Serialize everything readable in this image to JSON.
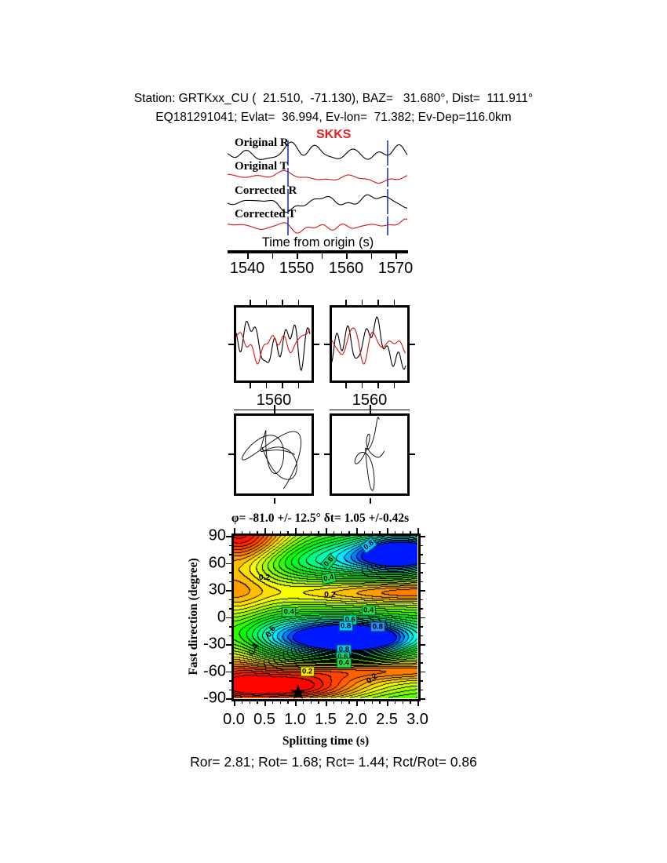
{
  "colors": {
    "trace_black": "#000000",
    "trace_red": "#d71414",
    "phase_red": "#e82020",
    "pick_blue": "#2233bb",
    "star_black": "#000000",
    "chip_green": "#22dd44",
    "chip_cyan": "#00c8ff",
    "chip_yellow": "#ffee00",
    "chip_blue": "#3388ff"
  },
  "header": {
    "line1": "Station: GRTKxx_CU (  21.510,  -71.130), BAZ=   31.680°, Dist=  111.911°",
    "line2": "EQ181291041; Evlat=  36.994, Ev-lon=  71.382; Ev-Dep=116.0km"
  },
  "seismogram": {
    "phase_label": "SKKS",
    "trace_labels": [
      "Original R",
      "Original T",
      "Corrected R",
      "Corrected T"
    ],
    "axis_label": "Time from origin (s)",
    "tick_labels": [
      "1540",
      "1550",
      "1560",
      "1570"
    ]
  },
  "window_panels": {
    "left_tick_label": "1560",
    "right_tick_label": "1560"
  },
  "contour": {
    "title": "φ= -81.0 +/- 12.5° δt= 1.05 +/-0.42s",
    "ylabel": "Fast direction (degree)",
    "xlabel": "Splitting time (s)",
    "ytick_labels": [
      "90",
      "60",
      "30",
      "0",
      "-30",
      "-60",
      "-90"
    ],
    "xtick_labels": [
      "0.0",
      "0.5",
      "1.0",
      "1.5",
      "2.0",
      "2.5",
      "3.0"
    ],
    "star": {
      "dt": 1.05,
      "phi": -81
    },
    "labels": [
      {
        "text": "0.2",
        "dt": 0.5,
        "phi": 44,
        "bg": null,
        "rot": 0
      },
      {
        "text": "0.6",
        "dt": 1.55,
        "phi": 61,
        "bg": "#00e06a",
        "rot": -48
      },
      {
        "text": "0.8",
        "dt": 2.2,
        "phi": 80,
        "bg": "#00c8ff",
        "rot": -38
      },
      {
        "text": "0.4",
        "dt": 1.55,
        "phi": 43,
        "bg": "#22dd44",
        "rot": -12
      },
      {
        "text": "0.2",
        "dt": 1.57,
        "phi": 25,
        "bg": null,
        "rot": 0
      },
      {
        "text": "0.4",
        "dt": 0.9,
        "phi": 6,
        "bg": "#22dd44",
        "rot": 0
      },
      {
        "text": "0.4",
        "dt": 2.2,
        "phi": 7,
        "bg": "#22dd44",
        "rot": 0
      },
      {
        "text": "0.6",
        "dt": 1.9,
        "phi": -3,
        "bg": "#00e0a0",
        "rot": 0
      },
      {
        "text": "0.8",
        "dt": 1.83,
        "phi": -10,
        "bg": "#00c8ff",
        "rot": 0
      },
      {
        "text": "0.8",
        "dt": 2.35,
        "phi": -11,
        "bg": "#3388ff",
        "rot": 0
      },
      {
        "text": "0.6",
        "dt": 0.6,
        "phi": -16,
        "bg": null,
        "rot": -58
      },
      {
        "text": "0.4",
        "dt": 0.32,
        "phi": -36,
        "bg": null,
        "rot": -62
      },
      {
        "text": "0.8",
        "dt": 1.8,
        "phi": -36,
        "bg": "#00c8ff",
        "rot": 0
      },
      {
        "text": "0.6",
        "dt": 1.78,
        "phi": -44,
        "bg": "#00dd88",
        "rot": 0
      },
      {
        "text": "0.4",
        "dt": 1.8,
        "phi": -51,
        "bg": "#22dd44",
        "rot": 0
      },
      {
        "text": "0.2",
        "dt": 1.2,
        "phi": -60,
        "bg": "#ffee00",
        "rot": 0
      },
      {
        "text": "0.2",
        "dt": 2.25,
        "phi": -68,
        "bg": null,
        "rot": -38
      }
    ]
  },
  "footer": {
    "text": "Ror= 2.81; Rot= 1.68; Rct= 1.44; Rct/Rot= 0.86"
  },
  "results": {
    "Ror": "2.81",
    "Rot": "1.68",
    "Rct": "1.44",
    "Rct_over_Rot": "0.86"
  },
  "chart_data": [
    {
      "type": "line",
      "panel": "seismograms",
      "phase_label": "SKKS",
      "xlabel": "Time from origin (s)",
      "x_ticks": [
        1540,
        1550,
        1560,
        1570
      ],
      "x_range": [
        1536,
        1576
      ],
      "window_picks_s": [
        1548,
        1568.5
      ],
      "series": [
        {
          "name": "Original R",
          "color": "#000000"
        },
        {
          "name": "Original T",
          "color": "#d71414"
        },
        {
          "name": "Corrected R",
          "color": "#000000"
        },
        {
          "name": "Corrected T",
          "color": "#d71414"
        }
      ]
    },
    {
      "type": "line",
      "panel": "windowed-waveforms",
      "x_tick": 1560,
      "note": "two panels: original (left) and corrected (right), R in black overlaid with T in red"
    },
    {
      "type": "scatter",
      "panel": "particle-motion",
      "note": "R-T particle motion, original (left, elliptical) and corrected (right, more linear)"
    },
    {
      "type": "heatmap",
      "panel": "splitting-error-surface",
      "title": "φ= -81.0 +/- 12.5° δt= 1.05 +/-0.42s",
      "xlabel": "Splitting time (s)",
      "ylabel": "Fast direction (degree)",
      "x_range": [
        0,
        3
      ],
      "y_range": [
        -90,
        90
      ],
      "x_ticks": [
        0.0,
        0.5,
        1.0,
        1.5,
        2.0,
        2.5,
        3.0
      ],
      "y_ticks": [
        90,
        60,
        30,
        0,
        -30,
        -60,
        -90
      ],
      "contour_levels_labeled": [
        0.2,
        0.4,
        0.6,
        0.8
      ],
      "best_fit": {
        "fast_direction_deg": -81.0,
        "fast_direction_err_deg": 12.5,
        "delay_s": 1.05,
        "delay_err_s": 0.42,
        "marker": "star",
        "at": [
          1.05,
          -81
        ]
      },
      "maxima_red": [
        {
          "dt": 0.8,
          "phi": -80
        },
        {
          "dt": 0.15,
          "phi": 86
        }
      ],
      "minima_blue": [
        {
          "dt": 2.05,
          "phi": -25
        },
        {
          "dt": 2.75,
          "phi": 70
        }
      ]
    }
  ]
}
